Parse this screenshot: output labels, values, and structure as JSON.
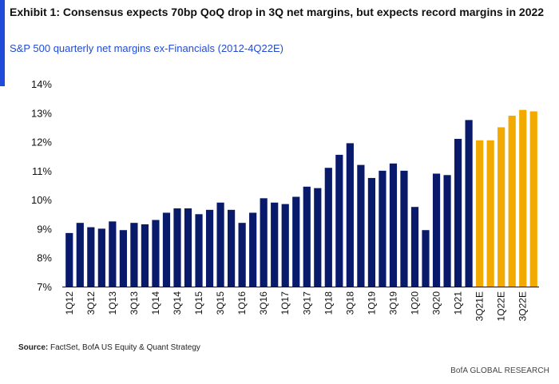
{
  "header": {
    "title": "Exhibit 1: Consensus expects 70bp QoQ drop in 3Q net margins, but expects record margins in 2022",
    "subtitle": "S&P 500 quarterly net margins ex-Financials (2012-4Q22E)"
  },
  "footer": {
    "source_label": "Source:",
    "source_text": "FactSet, BofA US Equity & Quant Strategy",
    "brand": "BofA GLOBAL RESEARCH"
  },
  "colors": {
    "accent": "#1f4bd8",
    "actual": "#0a1a6b",
    "estimate": "#f2a900"
  },
  "chart_data": {
    "type": "bar",
    "title": "",
    "xlabel": "",
    "ylabel": "",
    "ylim": [
      7,
      14
    ],
    "yticks": [
      7,
      8,
      9,
      10,
      11,
      12,
      13,
      14
    ],
    "ytick_labels": [
      "7%",
      "8%",
      "9%",
      "10%",
      "11%",
      "12%",
      "13%",
      "14%"
    ],
    "y_unit": "%",
    "grid": false,
    "legend": "none",
    "categories": [
      "1Q12",
      "2Q12",
      "3Q12",
      "4Q12",
      "1Q13",
      "2Q13",
      "3Q13",
      "4Q13",
      "1Q14",
      "2Q14",
      "3Q14",
      "4Q14",
      "1Q15",
      "2Q15",
      "3Q15",
      "4Q15",
      "1Q16",
      "2Q16",
      "3Q16",
      "4Q16",
      "1Q17",
      "2Q17",
      "3Q17",
      "4Q17",
      "1Q18",
      "2Q18",
      "3Q18",
      "4Q18",
      "1Q19",
      "2Q19",
      "3Q19",
      "4Q19",
      "1Q20",
      "2Q20",
      "3Q20",
      "4Q20",
      "1Q21",
      "2Q21",
      "3Q21E",
      "4Q21E",
      "1Q22E",
      "2Q22E",
      "3Q22E",
      "4Q22E"
    ],
    "tick_labels_shown": [
      "1Q12",
      "3Q12",
      "1Q13",
      "3Q13",
      "1Q14",
      "3Q14",
      "1Q15",
      "3Q15",
      "1Q16",
      "3Q16",
      "1Q17",
      "3Q17",
      "1Q18",
      "3Q18",
      "1Q19",
      "3Q19",
      "1Q20",
      "3Q20",
      "1Q21",
      "3Q21E",
      "1Q22E",
      "3Q22E"
    ],
    "values": [
      8.85,
      9.2,
      9.05,
      9.0,
      9.25,
      8.95,
      9.2,
      9.15,
      9.3,
      9.55,
      9.7,
      9.7,
      9.5,
      9.65,
      9.9,
      9.65,
      9.2,
      9.55,
      10.05,
      9.9,
      9.85,
      10.1,
      10.45,
      10.4,
      11.1,
      11.55,
      11.95,
      11.2,
      10.75,
      11.0,
      11.25,
      11.0,
      9.75,
      8.95,
      10.9,
      10.85,
      12.1,
      12.75,
      12.05,
      12.05,
      12.5,
      12.9,
      13.1,
      13.05
    ],
    "estimate_flags": [
      false,
      false,
      false,
      false,
      false,
      false,
      false,
      false,
      false,
      false,
      false,
      false,
      false,
      false,
      false,
      false,
      false,
      false,
      false,
      false,
      false,
      false,
      false,
      false,
      false,
      false,
      false,
      false,
      false,
      false,
      false,
      false,
      false,
      false,
      false,
      false,
      false,
      false,
      true,
      true,
      true,
      true,
      true,
      true
    ]
  }
}
